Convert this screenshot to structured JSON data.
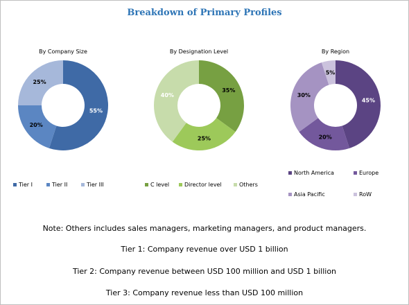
{
  "title": "Breakdown of Primary Profiles",
  "chart_data": [
    {
      "type": "pie",
      "title": "By Company Size",
      "categories": [
        "Tier I",
        "Tier II",
        "Tier III"
      ],
      "values": [
        55,
        20,
        25
      ],
      "labels": [
        "55%",
        "20%",
        "25%"
      ],
      "colors": [
        "#3f6aa6",
        "#5b86c2",
        "#a6b8da"
      ],
      "label_colors": [
        "#ffffff",
        "#000000",
        "#000000"
      ],
      "legend_position": "bottom"
    },
    {
      "type": "pie",
      "title": "By Designation Level",
      "categories": [
        "C level",
        "Director level",
        "Others"
      ],
      "values": [
        35,
        25,
        40
      ],
      "labels": [
        "35%",
        "25%",
        "40%"
      ],
      "colors": [
        "#77a042",
        "#9dc95a",
        "#c7dcab"
      ],
      "label_colors": [
        "#000000",
        "#000000",
        "#ffffff"
      ],
      "legend_position": "bottom"
    },
    {
      "type": "pie",
      "title": "By Region",
      "categories": [
        "North America",
        "Europe",
        "Asia Pacific",
        "RoW"
      ],
      "values": [
        45,
        20,
        30,
        5
      ],
      "labels": [
        "45%",
        "20%",
        "30%",
        "5%"
      ],
      "colors": [
        "#5b4483",
        "#73589c",
        "#a593c2",
        "#cbc2dd"
      ],
      "label_colors": [
        "#ffffff",
        "#000000",
        "#000000",
        "#000000"
      ],
      "legend_position": "bottom"
    }
  ],
  "notes": {
    "others": "Note: Others includes sales managers, marketing managers, and product managers.",
    "tier1": "Tier 1: Company revenue over USD 1 billion",
    "tier2": "Tier 2: Company revenue between USD 100 million and USD 1 billion",
    "tier3": "Tier 3: Company revenue less than USD 100 million"
  }
}
